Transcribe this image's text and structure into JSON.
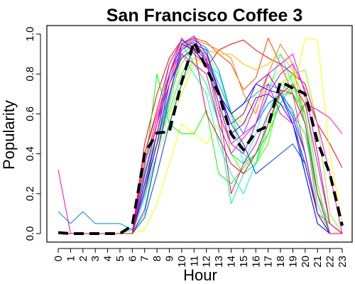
{
  "chart_data": {
    "type": "line",
    "title": "San Francisco Coffee 3",
    "xlabel": "Hour",
    "ylabel": "Popularity",
    "xlim": [
      0,
      23
    ],
    "ylim": [
      0,
      1
    ],
    "x": [
      0,
      1,
      2,
      3,
      4,
      5,
      6,
      7,
      8,
      9,
      10,
      11,
      12,
      13,
      14,
      15,
      16,
      17,
      18,
      19,
      20,
      21,
      22,
      23
    ],
    "x_ticks": [
      "0",
      "1",
      "2",
      "3",
      "4",
      "5",
      "6",
      "7",
      "8",
      "9",
      "10",
      "11",
      "12",
      "13",
      "14",
      "15",
      "16",
      "17",
      "18",
      "19",
      "20",
      "21",
      "22",
      "23"
    ],
    "y_ticks": [
      "0.0",
      "0.2",
      "0.4",
      "0.6",
      "0.8",
      "1.0"
    ],
    "y_tick_values": [
      0,
      0.2,
      0.4,
      0.6,
      0.8,
      1.0
    ],
    "grid": false,
    "series": [
      {
        "color": "#ff0000",
        "values": [
          0,
          0,
          0,
          0,
          0,
          0,
          0,
          0.45,
          0.7,
          0.88,
          0.97,
          0.93,
          0.83,
          0.92,
          0.95,
          0.97,
          0.92,
          0.88,
          0.85,
          0.8,
          0.75,
          0.55,
          0.45,
          0.33
        ]
      },
      {
        "color": "#ff4000",
        "values": [
          0,
          0,
          0,
          0,
          0,
          0,
          0,
          0.4,
          0.6,
          0.8,
          0.93,
          0.98,
          0.96,
          0.9,
          0.85,
          0.72,
          0.78,
          0.98,
          0.85,
          0.7,
          0.4,
          0.1,
          0.05,
          0
        ]
      },
      {
        "color": "#ff8000",
        "values": [
          0,
          0,
          0,
          0,
          0,
          0,
          0,
          0.35,
          0.55,
          0.75,
          0.92,
          0.97,
          0.95,
          0.92,
          0.88,
          0.7,
          0.6,
          0.8,
          0.95,
          0.85,
          0.55,
          0.1,
          0,
          0
        ]
      },
      {
        "color": "#ffbf00",
        "values": [
          0,
          0,
          0,
          0,
          0,
          0,
          0.02,
          0.3,
          0.5,
          0.7,
          0.85,
          0.95,
          0.92,
          0.9,
          0.9,
          0.85,
          0.82,
          0.85,
          0.9,
          0.82,
          0.6,
          0.2,
          0,
          0
        ]
      },
      {
        "color": "#ffff00",
        "values": [
          0,
          0,
          0,
          0,
          0,
          0,
          0,
          0.02,
          0.15,
          0.35,
          0.55,
          0.5,
          0.45,
          0.55,
          0.5,
          0.6,
          0.7,
          0.8,
          0.75,
          0.7,
          0.98,
          0.97,
          0.4,
          0.05
        ]
      },
      {
        "color": "#bfff00",
        "values": [
          0,
          0,
          0,
          0,
          0,
          0,
          0,
          0.2,
          0.4,
          0.55,
          0.7,
          0.85,
          0.9,
          0.8,
          0.6,
          0.55,
          0.62,
          0.75,
          0.82,
          0.78,
          0.55,
          0.2,
          0.05,
          0
        ]
      },
      {
        "color": "#80ff00",
        "values": [
          0,
          0,
          0,
          0,
          0,
          0,
          0,
          0.3,
          0.45,
          0.6,
          0.75,
          0.88,
          0.85,
          0.75,
          0.62,
          0.4,
          0.35,
          0.5,
          0.75,
          0.8,
          0.82,
          0.55,
          0.1,
          0
        ]
      },
      {
        "color": "#40ff00",
        "values": [
          0,
          0,
          0,
          0,
          0,
          0,
          0.02,
          0.25,
          0.5,
          0.62,
          0.8,
          0.92,
          0.9,
          0.7,
          0.4,
          0.3,
          0.35,
          0.45,
          0.7,
          0.8,
          0.68,
          0.25,
          0,
          0
        ]
      },
      {
        "color": "#00ff00",
        "values": [
          0,
          0,
          0,
          0,
          0,
          0,
          0,
          0.32,
          0.8,
          0.55,
          0.5,
          0.5,
          0.62,
          0.3,
          0.25,
          0.33,
          0.4,
          0.5,
          0.65,
          0.75,
          0.6,
          0.2,
          0,
          0
        ]
      },
      {
        "color": "#00ff40",
        "values": [
          0,
          0,
          0,
          0,
          0,
          0,
          0,
          0.1,
          0.4,
          0.65,
          0.9,
          0.95,
          0.88,
          0.55,
          0.4,
          0.35,
          0.4,
          0.55,
          0.7,
          0.7,
          0.6,
          0.2,
          0,
          0
        ]
      },
      {
        "color": "#00ff80",
        "values": [
          0,
          0,
          0,
          0,
          0,
          0,
          0.02,
          0.3,
          0.5,
          0.8,
          0.95,
          0.85,
          0.75,
          0.55,
          0.15,
          0.3,
          0.35,
          0.55,
          0.65,
          0.6,
          0.5,
          0.2,
          0.05,
          0
        ]
      },
      {
        "color": "#00ffbf",
        "values": [
          0,
          0,
          0,
          0,
          0,
          0,
          0,
          0.18,
          0.4,
          0.7,
          0.9,
          0.8,
          0.7,
          0.45,
          0.3,
          0.2,
          0.35,
          0.6,
          0.75,
          0.7,
          0.55,
          0.15,
          0,
          0
        ]
      },
      {
        "color": "#00ffff",
        "values": [
          0,
          0,
          0,
          0,
          0,
          0,
          0,
          0.2,
          0.5,
          0.75,
          0.96,
          0.92,
          0.85,
          0.8,
          0.6,
          0.35,
          0.5,
          0.7,
          0.9,
          0.75,
          0.55,
          0.2,
          0,
          0
        ]
      },
      {
        "color": "#00bfff",
        "values": [
          0,
          0,
          0,
          0,
          0,
          0,
          0,
          0.28,
          0.55,
          0.85,
          0.97,
          0.95,
          0.9,
          0.75,
          0.6,
          0.65,
          0.7,
          0.75,
          0.72,
          0.6,
          0.3,
          0.05,
          0,
          0
        ]
      },
      {
        "color": "#0080ff",
        "values": [
          0.11,
          0.05,
          0.11,
          0.05,
          0.05,
          0.05,
          0.02,
          0.2,
          0.45,
          0.7,
          0.92,
          0.97,
          0.93,
          0.82,
          0.6,
          0.5,
          0.55,
          0.65,
          0.7,
          0.62,
          0.4,
          0.1,
          0,
          0
        ]
      },
      {
        "color": "#0040ff",
        "values": [
          0,
          0,
          0,
          0,
          0,
          0,
          0,
          0.08,
          0.3,
          0.55,
          0.75,
          0.95,
          0.92,
          0.7,
          0.55,
          0.45,
          0.3,
          0.35,
          0.4,
          0.45,
          0.35,
          0.1,
          0,
          0
        ]
      },
      {
        "color": "#0000ff",
        "values": [
          0,
          0,
          0,
          0,
          0,
          0,
          0,
          0.25,
          0.5,
          0.8,
          0.95,
          0.92,
          0.85,
          0.7,
          0.6,
          0.65,
          0.75,
          0.72,
          0.7,
          0.55,
          0.3,
          0.05,
          0,
          0
        ]
      },
      {
        "color": "#4000ff",
        "values": [
          0,
          0,
          0,
          0,
          0,
          0,
          0,
          0.22,
          0.45,
          0.75,
          0.88,
          0.93,
          0.87,
          0.72,
          0.5,
          0.55,
          0.68,
          0.7,
          0.65,
          0.55,
          0.35,
          0.1,
          0,
          0
        ]
      },
      {
        "color": "#8000ff",
        "values": [
          0,
          0,
          0,
          0,
          0,
          0,
          0,
          0.12,
          0.4,
          0.68,
          0.95,
          0.99,
          0.9,
          0.72,
          0.55,
          0.6,
          0.75,
          0.8,
          0.7,
          0.58,
          0.4,
          0.1,
          0,
          0
        ]
      },
      {
        "color": "#bf00ff",
        "values": [
          0,
          0,
          0,
          0,
          0,
          0,
          0,
          0.3,
          0.55,
          0.8,
          0.98,
          0.9,
          0.85,
          0.65,
          0.45,
          0.4,
          0.55,
          0.7,
          0.8,
          0.85,
          0.72,
          0.4,
          0.05,
          0
        ]
      },
      {
        "color": "#ff00ff",
        "values": [
          0,
          0,
          0,
          0,
          0,
          0,
          0,
          0.35,
          0.58,
          0.78,
          0.92,
          0.96,
          0.88,
          0.6,
          0.45,
          0.5,
          0.65,
          0.8,
          0.85,
          0.9,
          0.7,
          0.55,
          0.3,
          0
        ]
      },
      {
        "color": "#ff00bf",
        "values": [
          0.32,
          0,
          0,
          0,
          0,
          0,
          0,
          0.3,
          0.55,
          0.75,
          0.9,
          0.85,
          0.8,
          0.55,
          0.4,
          0.48,
          0.55,
          0.75,
          0.6,
          0.55,
          0.65,
          0.62,
          0.58,
          0.5
        ]
      },
      {
        "color": "#ff0080",
        "values": [
          0,
          0,
          0,
          0,
          0,
          0,
          0,
          0.22,
          0.5,
          0.8,
          0.95,
          0.98,
          0.86,
          0.65,
          0.2,
          0.35,
          0.45,
          0.6,
          0.7,
          0.75,
          0.65,
          0.35,
          0.05,
          0
        ]
      },
      {
        "color": "#ff0040",
        "values": [
          0,
          0,
          0,
          0,
          0,
          0,
          0,
          0.4,
          0.62,
          0.85,
          0.97,
          0.93,
          0.6,
          0.48,
          0.35,
          0.3,
          0.4,
          0.55,
          0.72,
          0.7,
          0.55,
          0.2,
          0,
          0
        ]
      },
      {
        "color": "#000000",
        "dashed": true,
        "values": [
          0.005,
          0,
          0,
          0,
          0,
          0,
          0.04,
          0.4,
          0.505,
          0.51,
          0.76,
          0.96,
          0.83,
          0.7,
          0.5,
          0.42,
          0.51,
          0.54,
          0.76,
          0.73,
          0.7,
          0.46,
          0.3,
          0.04
        ]
      }
    ]
  }
}
